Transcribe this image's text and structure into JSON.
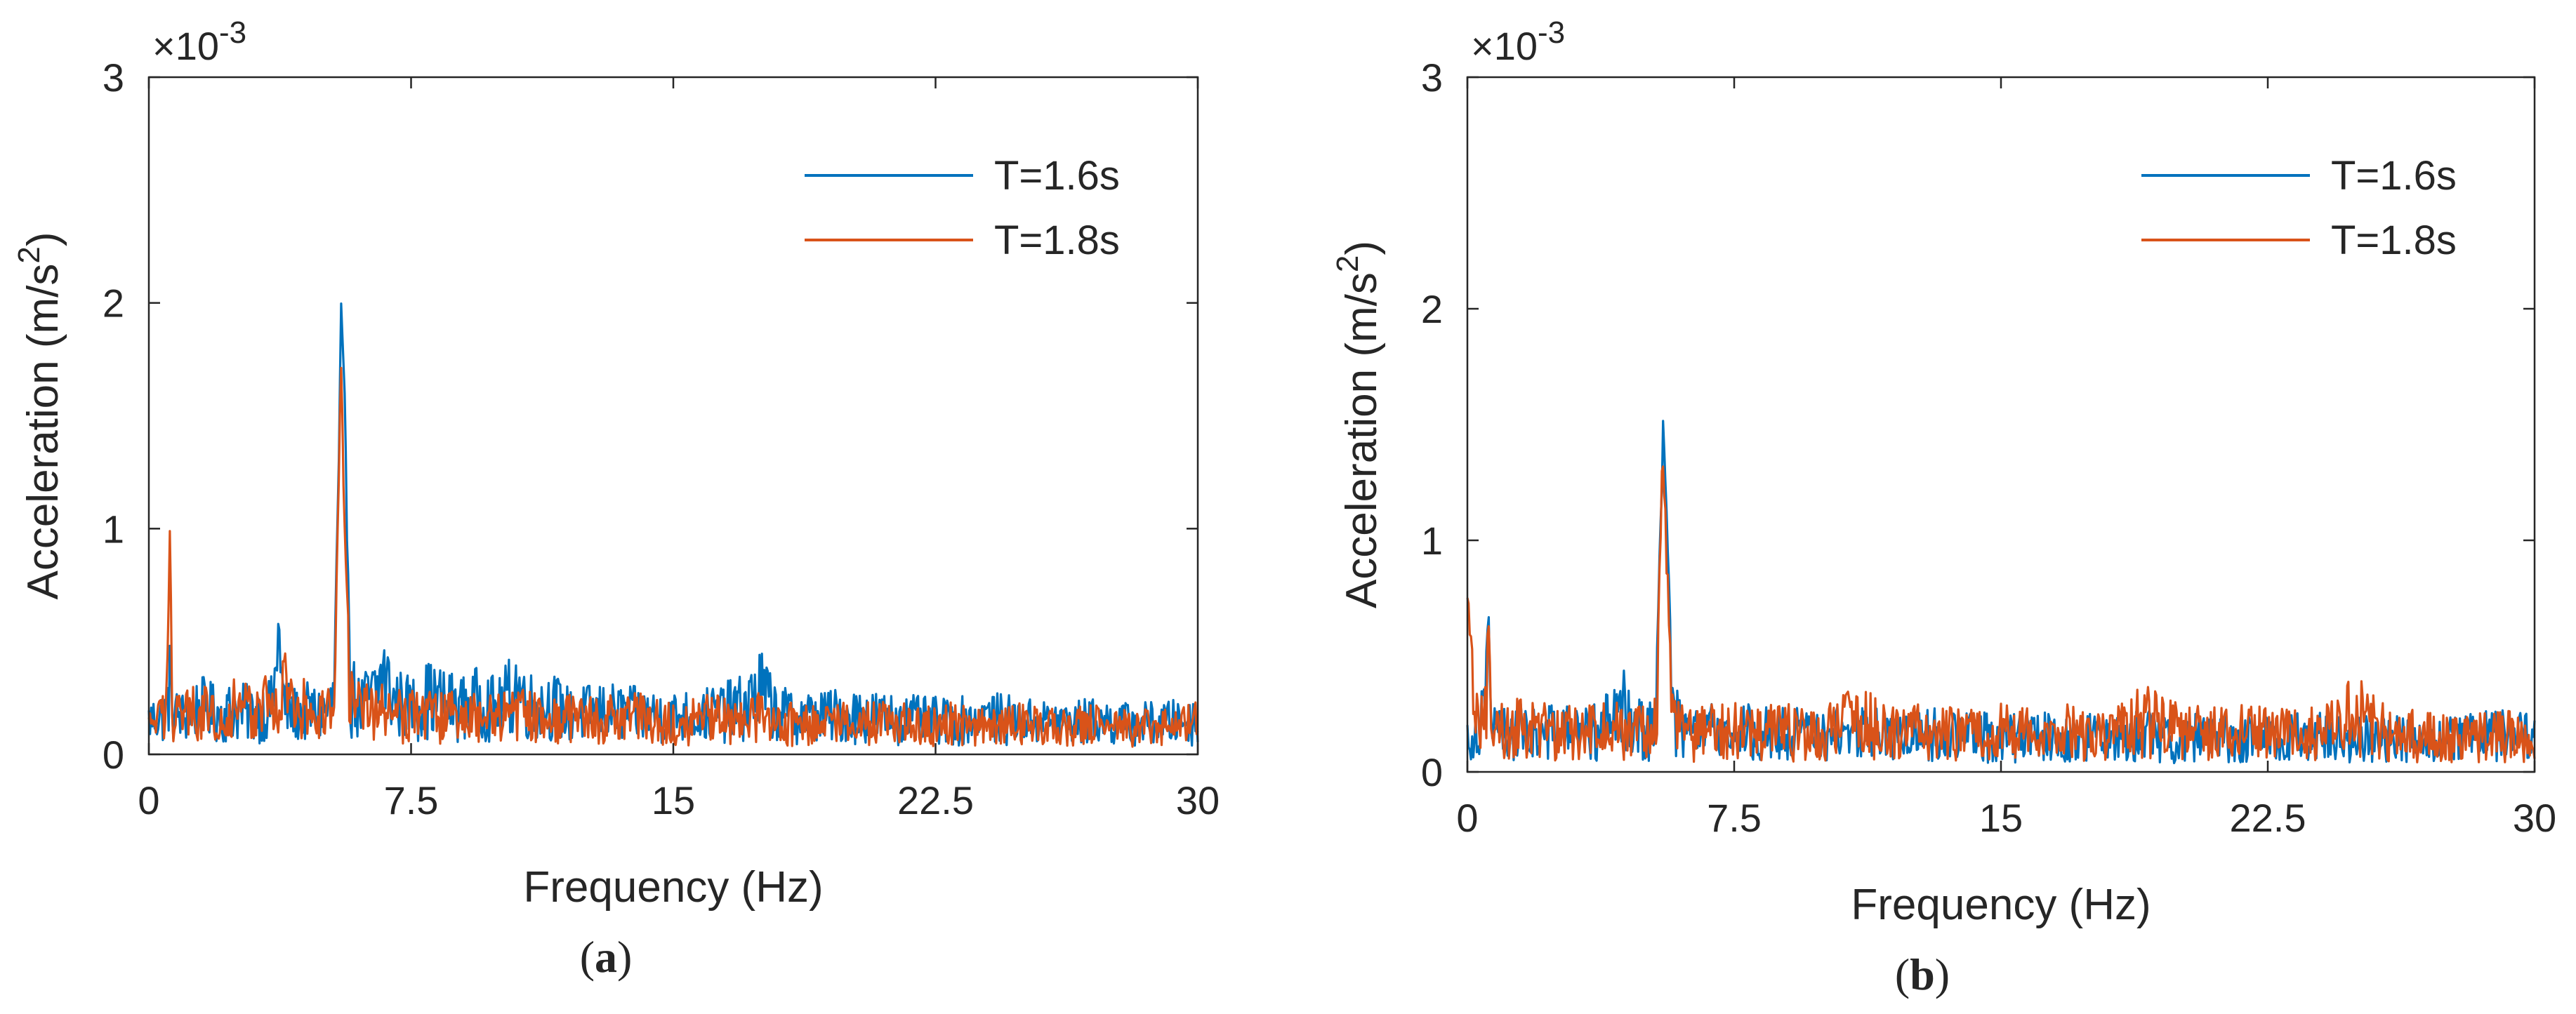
{
  "figure": {
    "panels": [
      {
        "caption": "a"
      },
      {
        "caption": "b"
      }
    ]
  },
  "chart_data": [
    {
      "type": "line",
      "panel": "a",
      "xlabel": "Frequency (Hz)",
      "ylabel": "Acceleration (m/s²)",
      "y_exponent": "×10-3",
      "xlim": [
        0,
        30
      ],
      "ylim": [
        0,
        3
      ],
      "xticks": [
        0,
        7.5,
        15,
        22.5,
        30
      ],
      "xtick_labels": [
        "0",
        "7.5",
        "15",
        "22.5",
        "30"
      ],
      "yticks": [
        0,
        1,
        2,
        3
      ],
      "ytick_labels": [
        "0",
        "1",
        "2",
        "3"
      ],
      "grid": false,
      "legend_position": "top-right",
      "series": [
        {
          "name": "T=1.6s",
          "color": "#0072BD",
          "x": [
            0,
            0.5,
            0.6,
            0.7,
            1,
            1.5,
            2,
            2.5,
            3,
            3.5,
            3.7,
            3.9,
            4.1,
            4.5,
            5.0,
            5.3,
            5.45,
            5.5,
            5.6,
            5.75,
            6.0,
            6.5,
            6.7,
            7,
            7.5,
            8,
            8.5,
            9,
            9.5,
            10,
            10.5,
            11,
            11.5,
            12,
            13,
            14,
            15,
            16,
            17,
            17.5,
            18,
            19,
            20,
            21,
            22,
            23,
            24,
            25,
            26,
            27,
            28,
            29,
            30
          ],
          "values": [
            0.25,
            0.3,
            0.55,
            0.3,
            0.28,
            0.35,
            0.3,
            0.33,
            0.3,
            0.35,
            0.65,
            0.35,
            0.3,
            0.32,
            0.3,
            0.4,
            1.5,
            2.05,
            1.6,
            0.5,
            0.35,
            0.45,
            0.6,
            0.4,
            0.35,
            0.42,
            0.38,
            0.35,
            0.4,
            0.33,
            0.5,
            0.35,
            0.38,
            0.3,
            0.32,
            0.3,
            0.28,
            0.3,
            0.35,
            0.48,
            0.3,
            0.28,
            0.3,
            0.28,
            0.26,
            0.25,
            0.28,
            0.25,
            0.24,
            0.25,
            0.23,
            0.24,
            0.25
          ]
        },
        {
          "name": "T=1.8s",
          "color": "#D95319",
          "x": [
            0,
            0.5,
            0.6,
            0.7,
            1,
            1.5,
            2,
            2.5,
            3,
            3.5,
            3.7,
            3.9,
            4.1,
            4.5,
            5.0,
            5.3,
            5.45,
            5.5,
            5.6,
            5.75,
            6.0,
            6.5,
            6.7,
            7,
            7.5,
            8,
            8.5,
            9,
            9.5,
            10,
            10.5,
            11,
            11.5,
            12,
            13,
            14,
            15,
            16,
            17,
            17.5,
            18,
            19,
            20,
            21,
            22,
            23,
            24,
            25,
            26,
            27,
            28,
            29,
            30
          ],
          "values": [
            0.2,
            0.3,
            1.0,
            0.35,
            0.3,
            0.32,
            0.28,
            0.35,
            0.3,
            0.42,
            0.3,
            0.58,
            0.3,
            0.35,
            0.3,
            0.35,
            1.4,
            1.95,
            1.1,
            0.4,
            0.32,
            0.3,
            0.35,
            0.3,
            0.33,
            0.3,
            0.28,
            0.3,
            0.27,
            0.3,
            0.28,
            0.3,
            0.25,
            0.28,
            0.26,
            0.28,
            0.25,
            0.27,
            0.24,
            0.28,
            0.25,
            0.24,
            0.23,
            0.25,
            0.22,
            0.24,
            0.2,
            0.23,
            0.21,
            0.22,
            0.2,
            0.22,
            0.25
          ]
        }
      ]
    },
    {
      "type": "line",
      "panel": "b",
      "xlabel": "Frequency (Hz)",
      "ylabel": "Acceleration (m/s²)",
      "y_exponent": "×10-3",
      "xlim": [
        0,
        30
      ],
      "ylim": [
        0,
        3
      ],
      "xticks": [
        0,
        7.5,
        15,
        22.5,
        30
      ],
      "xtick_labels": [
        "0",
        "7.5",
        "15",
        "22.5",
        "30"
      ],
      "yticks": [
        0,
        1,
        2,
        3
      ],
      "ytick_labels": [
        "0",
        "1",
        "2",
        "3"
      ],
      "grid": false,
      "legend_position": "top-right",
      "series": [
        {
          "name": "T=1.6s",
          "color": "#0072BD",
          "x": [
            0,
            0.3,
            0.6,
            0.7,
            1,
            1.5,
            2,
            2.5,
            3,
            3.5,
            4,
            4.5,
            5.0,
            5.3,
            5.45,
            5.5,
            5.6,
            5.75,
            6.0,
            6.5,
            7,
            7.5,
            8,
            9,
            10,
            11,
            12,
            13,
            14,
            15,
            16,
            17,
            18,
            19,
            20,
            21,
            22,
            23,
            24,
            25,
            26,
            27,
            28,
            29,
            30
          ],
          "values": [
            0.25,
            0.3,
            0.7,
            0.3,
            0.28,
            0.3,
            0.27,
            0.3,
            0.28,
            0.3,
            0.35,
            0.48,
            0.3,
            0.35,
            1.3,
            1.6,
            1.2,
            0.45,
            0.3,
            0.28,
            0.3,
            0.27,
            0.3,
            0.28,
            0.27,
            0.3,
            0.26,
            0.28,
            0.27,
            0.25,
            0.27,
            0.25,
            0.26,
            0.27,
            0.25,
            0.26,
            0.24,
            0.25,
            0.26,
            0.24,
            0.25,
            0.23,
            0.25,
            0.27,
            0.25
          ]
        },
        {
          "name": "T=1.8s",
          "color": "#D95319",
          "x": [
            0,
            0.3,
            0.6,
            0.7,
            1,
            1.5,
            2,
            2.5,
            3,
            3.5,
            4,
            4.5,
            5.0,
            5.3,
            5.45,
            5.5,
            5.6,
            5.75,
            6.0,
            6.5,
            7,
            7.5,
            8,
            9,
            10,
            11,
            12,
            13,
            14,
            15,
            16,
            17,
            18,
            19,
            20,
            21,
            22,
            23,
            24,
            25,
            26,
            27,
            28,
            29,
            30
          ],
          "values": [
            0.78,
            0.4,
            0.65,
            0.35,
            0.3,
            0.32,
            0.3,
            0.3,
            0.28,
            0.32,
            0.3,
            0.3,
            0.28,
            0.35,
            1.2,
            1.55,
            1.0,
            0.38,
            0.3,
            0.28,
            0.3,
            0.3,
            0.28,
            0.3,
            0.28,
            0.38,
            0.28,
            0.3,
            0.28,
            0.3,
            0.27,
            0.3,
            0.27,
            0.38,
            0.3,
            0.28,
            0.3,
            0.27,
            0.3,
            0.42,
            0.28,
            0.27,
            0.25,
            0.27,
            0.25
          ]
        }
      ]
    }
  ]
}
